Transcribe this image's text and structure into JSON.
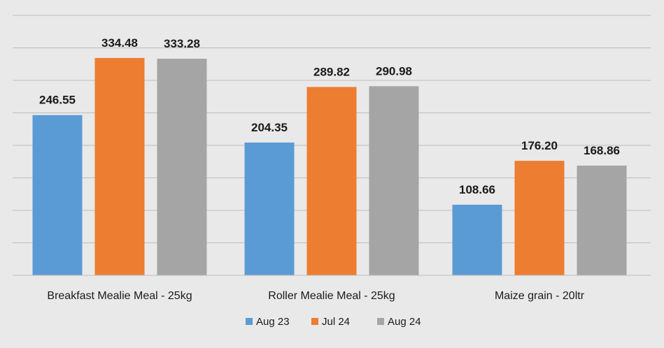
{
  "chart_data": {
    "type": "bar",
    "categories": [
      "Breakfast Mealie Meal - 25kg",
      "Roller Mealie Meal - 25kg",
      "Maize grain - 20ltr"
    ],
    "series": [
      {
        "name": "Aug 23",
        "color": "#5b9bd5",
        "values": [
          246.55,
          204.35,
          108.66
        ],
        "labels": [
          "246.55",
          "204.35",
          "108.66"
        ]
      },
      {
        "name": "Jul 24",
        "color": "#ed7d31",
        "values": [
          334.48,
          289.82,
          176.2
        ],
        "labels": [
          "334.48",
          "289.82",
          "176.20"
        ]
      },
      {
        "name": "Aug 24",
        "color": "#a5a5a5",
        "values": [
          333.28,
          290.98,
          168.86
        ],
        "labels": [
          "333.28",
          "290.98",
          "168.86"
        ]
      }
    ],
    "title": "",
    "xlabel": "",
    "ylabel": "",
    "ylim": [
      0,
      400
    ],
    "grid": true,
    "legend_position": "bottom"
  }
}
